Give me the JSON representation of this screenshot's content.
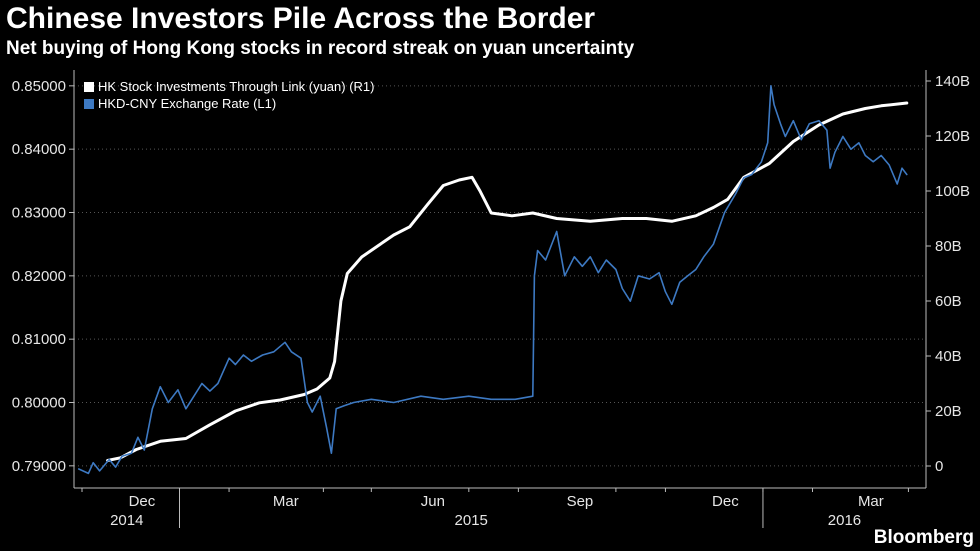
{
  "title": "Chinese Investors Pile Across the Border",
  "subtitle": "Net buying of Hong Kong stocks in record streak on yuan uncertainty",
  "brand": "Bloomberg",
  "chart_data": {
    "type": "line",
    "x_axis": {
      "month_labels": [
        "Dec",
        "Mar",
        "Jun",
        "Sep",
        "Dec",
        "Mar"
      ],
      "year_labels": [
        "2014",
        "2015",
        "2016"
      ]
    },
    "left_axis": {
      "ylim": [
        0.7865,
        0.8525
      ],
      "ticks": [
        "0.79000",
        "0.80000",
        "0.81000",
        "0.82000",
        "0.83000",
        "0.84000",
        "0.85000"
      ],
      "tick_values": [
        0.79,
        0.8,
        0.81,
        0.82,
        0.83,
        0.84,
        0.85
      ]
    },
    "right_axis": {
      "ylim": [
        -8,
        144
      ],
      "ticks": [
        "0",
        "20B",
        "40B",
        "60B",
        "80B",
        "100B",
        "120B",
        "140B"
      ],
      "tick_values": [
        0,
        20,
        40,
        60,
        80,
        100,
        120,
        140
      ]
    },
    "series": [
      {
        "name": "HK Stock Investments Through Link (yuan) (R1)",
        "axis": "right",
        "color": "#ffffff",
        "points": [
          [
            "2014-11-17",
            2
          ],
          [
            "2014-11-25",
            3
          ],
          [
            "2014-12-05",
            6
          ],
          [
            "2014-12-20",
            9
          ],
          [
            "2015-01-05",
            10
          ],
          [
            "2015-01-20",
            15
          ],
          [
            "2015-02-05",
            20
          ],
          [
            "2015-02-20",
            23
          ],
          [
            "2015-03-05",
            24
          ],
          [
            "2015-03-20",
            26
          ],
          [
            "2015-03-28",
            28
          ],
          [
            "2015-04-05",
            32
          ],
          [
            "2015-04-08",
            38
          ],
          [
            "2015-04-12",
            60
          ],
          [
            "2015-04-16",
            70
          ],
          [
            "2015-04-25",
            76
          ],
          [
            "2015-05-05",
            80
          ],
          [
            "2015-05-15",
            84
          ],
          [
            "2015-05-25",
            87
          ],
          [
            "2015-06-05",
            95
          ],
          [
            "2015-06-15",
            102
          ],
          [
            "2015-06-25",
            104
          ],
          [
            "2015-07-03",
            105
          ],
          [
            "2015-07-08",
            100
          ],
          [
            "2015-07-15",
            92
          ],
          [
            "2015-07-28",
            91
          ],
          [
            "2015-08-10",
            92
          ],
          [
            "2015-08-25",
            90
          ],
          [
            "2015-09-15",
            89
          ],
          [
            "2015-10-05",
            90
          ],
          [
            "2015-10-20",
            90
          ],
          [
            "2015-11-05",
            89
          ],
          [
            "2015-11-20",
            91
          ],
          [
            "2015-12-01",
            94
          ],
          [
            "2015-12-10",
            97
          ],
          [
            "2015-12-20",
            105
          ],
          [
            "2016-01-05",
            110
          ],
          [
            "2016-01-20",
            118
          ],
          [
            "2016-02-05",
            124
          ],
          [
            "2016-02-20",
            128
          ],
          [
            "2016-03-05",
            130
          ],
          [
            "2016-03-15",
            131
          ],
          [
            "2016-03-31",
            132
          ]
        ]
      },
      {
        "name": "HKD-CNY Exchange Rate (L1)",
        "axis": "left",
        "color": "#3d79c2",
        "points": [
          [
            "2014-10-30",
            0.7895
          ],
          [
            "2014-11-05",
            0.7888
          ],
          [
            "2014-11-08",
            0.7905
          ],
          [
            "2014-11-12",
            0.7892
          ],
          [
            "2014-11-18",
            0.791
          ],
          [
            "2014-11-22",
            0.7898
          ],
          [
            "2014-11-26",
            0.7915
          ],
          [
            "2014-12-02",
            0.792
          ],
          [
            "2014-12-06",
            0.7945
          ],
          [
            "2014-12-10",
            0.7925
          ],
          [
            "2014-12-15",
            0.799
          ],
          [
            "2014-12-20",
            0.8025
          ],
          [
            "2014-12-25",
            0.8
          ],
          [
            "2014-12-31",
            0.802
          ],
          [
            "2015-01-05",
            0.799
          ],
          [
            "2015-01-10",
            0.801
          ],
          [
            "2015-01-15",
            0.803
          ],
          [
            "2015-01-20",
            0.8018
          ],
          [
            "2015-01-25",
            0.803
          ],
          [
            "2015-02-01",
            0.807
          ],
          [
            "2015-02-05",
            0.806
          ],
          [
            "2015-02-10",
            0.8075
          ],
          [
            "2015-02-15",
            0.8065
          ],
          [
            "2015-02-22",
            0.8075
          ],
          [
            "2015-03-01",
            0.808
          ],
          [
            "2015-03-08",
            0.8095
          ],
          [
            "2015-03-12",
            0.808
          ],
          [
            "2015-03-18",
            0.807
          ],
          [
            "2015-03-22",
            0.8
          ],
          [
            "2015-03-25",
            0.7985
          ],
          [
            "2015-03-30",
            0.801
          ],
          [
            "2015-04-03",
            0.796
          ],
          [
            "2015-04-06",
            0.792
          ],
          [
            "2015-04-09",
            0.799
          ],
          [
            "2015-04-14",
            0.7995
          ],
          [
            "2015-04-20",
            0.8
          ],
          [
            "2015-05-01",
            0.8005
          ],
          [
            "2015-05-15",
            0.8
          ],
          [
            "2015-06-01",
            0.801
          ],
          [
            "2015-06-15",
            0.8005
          ],
          [
            "2015-07-01",
            0.801
          ],
          [
            "2015-07-15",
            0.8005
          ],
          [
            "2015-07-30",
            0.8005
          ],
          [
            "2015-08-10",
            0.801
          ],
          [
            "2015-08-11",
            0.82
          ],
          [
            "2015-08-13",
            0.824
          ],
          [
            "2015-08-18",
            0.8225
          ],
          [
            "2015-08-25",
            0.827
          ],
          [
            "2015-08-30",
            0.82
          ],
          [
            "2015-09-05",
            0.823
          ],
          [
            "2015-09-10",
            0.8215
          ],
          [
            "2015-09-15",
            0.823
          ],
          [
            "2015-09-20",
            0.8205
          ],
          [
            "2015-09-25",
            0.8225
          ],
          [
            "2015-10-01",
            0.821
          ],
          [
            "2015-10-05",
            0.818
          ],
          [
            "2015-10-10",
            0.816
          ],
          [
            "2015-10-15",
            0.82
          ],
          [
            "2015-10-22",
            0.8195
          ],
          [
            "2015-10-28",
            0.8205
          ],
          [
            "2015-11-01",
            0.8175
          ],
          [
            "2015-11-05",
            0.8155
          ],
          [
            "2015-11-10",
            0.819
          ],
          [
            "2015-11-15",
            0.82
          ],
          [
            "2015-11-20",
            0.821
          ],
          [
            "2015-11-25",
            0.823
          ],
          [
            "2015-12-01",
            0.825
          ],
          [
            "2015-12-08",
            0.83
          ],
          [
            "2015-12-15",
            0.833
          ],
          [
            "2015-12-20",
            0.8355
          ],
          [
            "2015-12-25",
            0.836
          ],
          [
            "2015-12-31",
            0.838
          ],
          [
            "2016-01-04",
            0.841
          ],
          [
            "2016-01-06",
            0.85
          ],
          [
            "2016-01-08",
            0.847
          ],
          [
            "2016-01-12",
            0.844
          ],
          [
            "2016-01-15",
            0.842
          ],
          [
            "2016-01-20",
            0.8445
          ],
          [
            "2016-01-25",
            0.8415
          ],
          [
            "2016-01-30",
            0.844
          ],
          [
            "2016-02-05",
            0.8445
          ],
          [
            "2016-02-10",
            0.843
          ],
          [
            "2016-02-12",
            0.837
          ],
          [
            "2016-02-15",
            0.8395
          ],
          [
            "2016-02-20",
            0.842
          ],
          [
            "2016-02-25",
            0.84
          ],
          [
            "2016-03-01",
            0.841
          ],
          [
            "2016-03-05",
            0.839
          ],
          [
            "2016-03-10",
            0.838
          ],
          [
            "2016-03-15",
            0.839
          ],
          [
            "2016-03-20",
            0.8375
          ],
          [
            "2016-03-25",
            0.8345
          ],
          [
            "2016-03-28",
            0.837
          ],
          [
            "2016-03-31",
            0.836
          ]
        ]
      }
    ]
  }
}
